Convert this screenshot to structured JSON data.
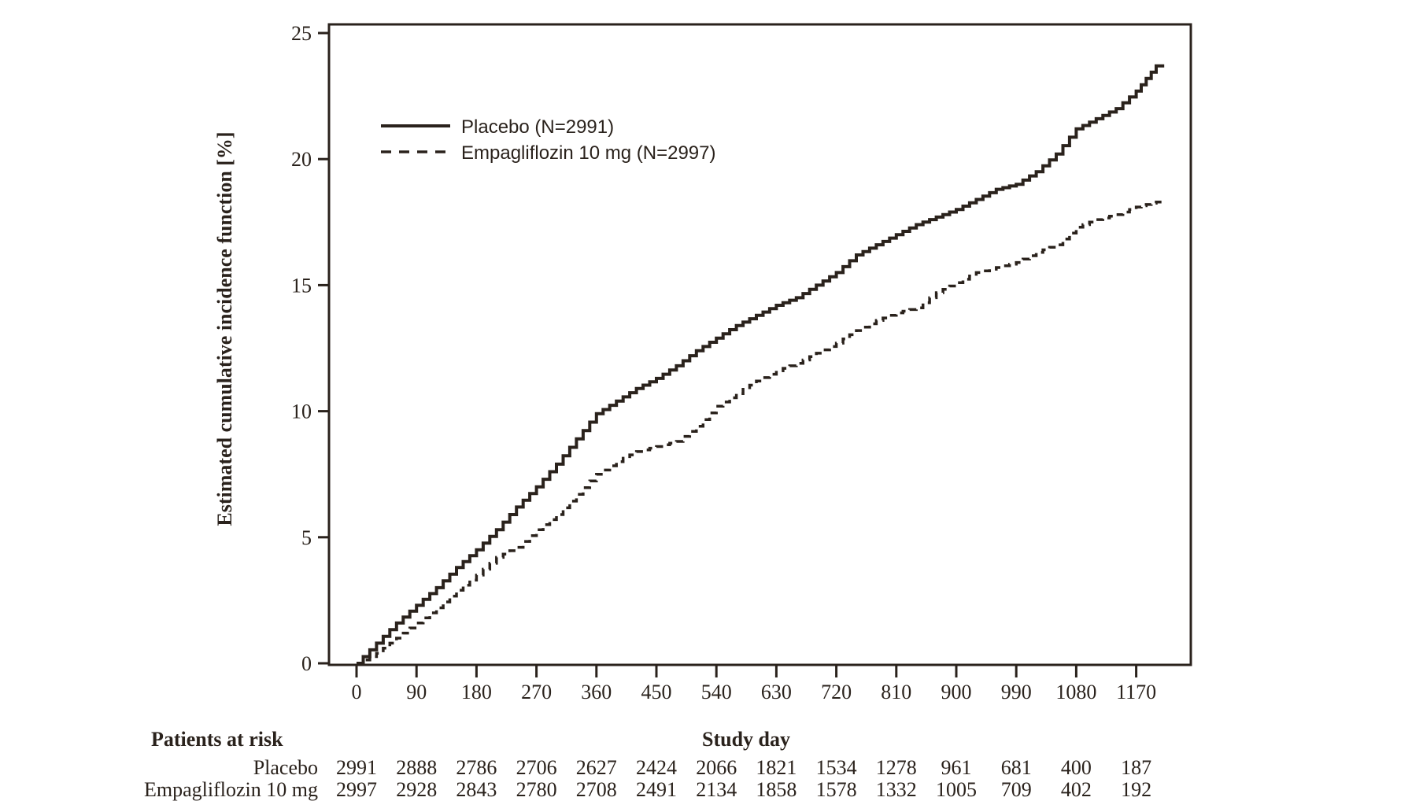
{
  "colors": {
    "ink": "#2a221c",
    "background": "#ffffff"
  },
  "chart_data": {
    "type": "line",
    "subtype": "kaplan-meier-step",
    "title": "",
    "xlabel": "Study day",
    "ylabel": "Estimated cumulative incidence function [%]",
    "xlim": [
      0,
      1215
    ],
    "ylim": [
      0,
      25
    ],
    "x_ticks": [
      0,
      90,
      180,
      270,
      360,
      450,
      540,
      630,
      720,
      810,
      900,
      990,
      1080,
      1170
    ],
    "y_ticks": [
      0,
      5,
      10,
      15,
      20,
      25
    ],
    "grid": false,
    "legend_position": "upper-left-inside",
    "series": [
      {
        "name": "Placebo (N=2991)",
        "line_style": "solid",
        "points": [
          [
            0,
            0.0
          ],
          [
            30,
            0.8
          ],
          [
            60,
            1.6
          ],
          [
            90,
            2.3
          ],
          [
            120,
            3.0
          ],
          [
            150,
            3.8
          ],
          [
            180,
            4.5
          ],
          [
            210,
            5.3
          ],
          [
            240,
            6.2
          ],
          [
            270,
            7.0
          ],
          [
            300,
            7.9
          ],
          [
            330,
            8.9
          ],
          [
            360,
            9.9
          ],
          [
            390,
            10.4
          ],
          [
            420,
            10.9
          ],
          [
            450,
            11.3
          ],
          [
            480,
            11.8
          ],
          [
            510,
            12.4
          ],
          [
            540,
            12.9
          ],
          [
            570,
            13.4
          ],
          [
            600,
            13.8
          ],
          [
            630,
            14.2
          ],
          [
            660,
            14.5
          ],
          [
            690,
            15.0
          ],
          [
            720,
            15.5
          ],
          [
            750,
            16.2
          ],
          [
            780,
            16.6
          ],
          [
            810,
            17.0
          ],
          [
            840,
            17.4
          ],
          [
            870,
            17.7
          ],
          [
            900,
            18.0
          ],
          [
            930,
            18.4
          ],
          [
            960,
            18.8
          ],
          [
            990,
            19.0
          ],
          [
            1020,
            19.5
          ],
          [
            1050,
            20.2
          ],
          [
            1080,
            21.2
          ],
          [
            1110,
            21.6
          ],
          [
            1140,
            22.0
          ],
          [
            1170,
            22.7
          ],
          [
            1185,
            23.2
          ],
          [
            1200,
            23.7
          ],
          [
            1212,
            23.7
          ]
        ]
      },
      {
        "name": "Empagliflozin 10 mg (N=2997)",
        "line_style": "dashed",
        "points": [
          [
            0,
            0.0
          ],
          [
            30,
            0.4
          ],
          [
            60,
            1.0
          ],
          [
            90,
            1.6
          ],
          [
            120,
            2.2
          ],
          [
            150,
            2.9
          ],
          [
            180,
            3.5
          ],
          [
            210,
            4.2
          ],
          [
            240,
            4.6
          ],
          [
            270,
            5.3
          ],
          [
            300,
            5.9
          ],
          [
            330,
            6.7
          ],
          [
            360,
            7.5
          ],
          [
            390,
            8.0
          ],
          [
            420,
            8.4
          ],
          [
            450,
            8.6
          ],
          [
            480,
            8.8
          ],
          [
            510,
            9.4
          ],
          [
            540,
            10.2
          ],
          [
            570,
            10.7
          ],
          [
            600,
            11.2
          ],
          [
            630,
            11.6
          ],
          [
            660,
            11.9
          ],
          [
            690,
            12.3
          ],
          [
            720,
            12.7
          ],
          [
            750,
            13.2
          ],
          [
            780,
            13.6
          ],
          [
            810,
            13.9
          ],
          [
            840,
            14.1
          ],
          [
            870,
            14.7
          ],
          [
            900,
            15.1
          ],
          [
            930,
            15.5
          ],
          [
            960,
            15.7
          ],
          [
            990,
            15.9
          ],
          [
            1020,
            16.3
          ],
          [
            1050,
            16.6
          ],
          [
            1080,
            17.3
          ],
          [
            1110,
            17.6
          ],
          [
            1140,
            17.8
          ],
          [
            1170,
            18.1
          ],
          [
            1185,
            18.2
          ],
          [
            1200,
            18.3
          ],
          [
            1212,
            18.3
          ]
        ]
      }
    ],
    "patients_at_risk": {
      "title": "Patients at risk",
      "days": [
        0,
        90,
        180,
        270,
        360,
        450,
        540,
        630,
        720,
        810,
        900,
        990,
        1080,
        1170
      ],
      "rows": [
        {
          "label": "Placebo",
          "counts": [
            2991,
            2888,
            2786,
            2706,
            2627,
            2424,
            2066,
            1821,
            1534,
            1278,
            961,
            681,
            400,
            187
          ]
        },
        {
          "label": "Empagliflozin 10 mg",
          "counts": [
            2997,
            2928,
            2843,
            2780,
            2708,
            2491,
            2134,
            1858,
            1578,
            1332,
            1005,
            709,
            402,
            192
          ]
        }
      ]
    }
  }
}
